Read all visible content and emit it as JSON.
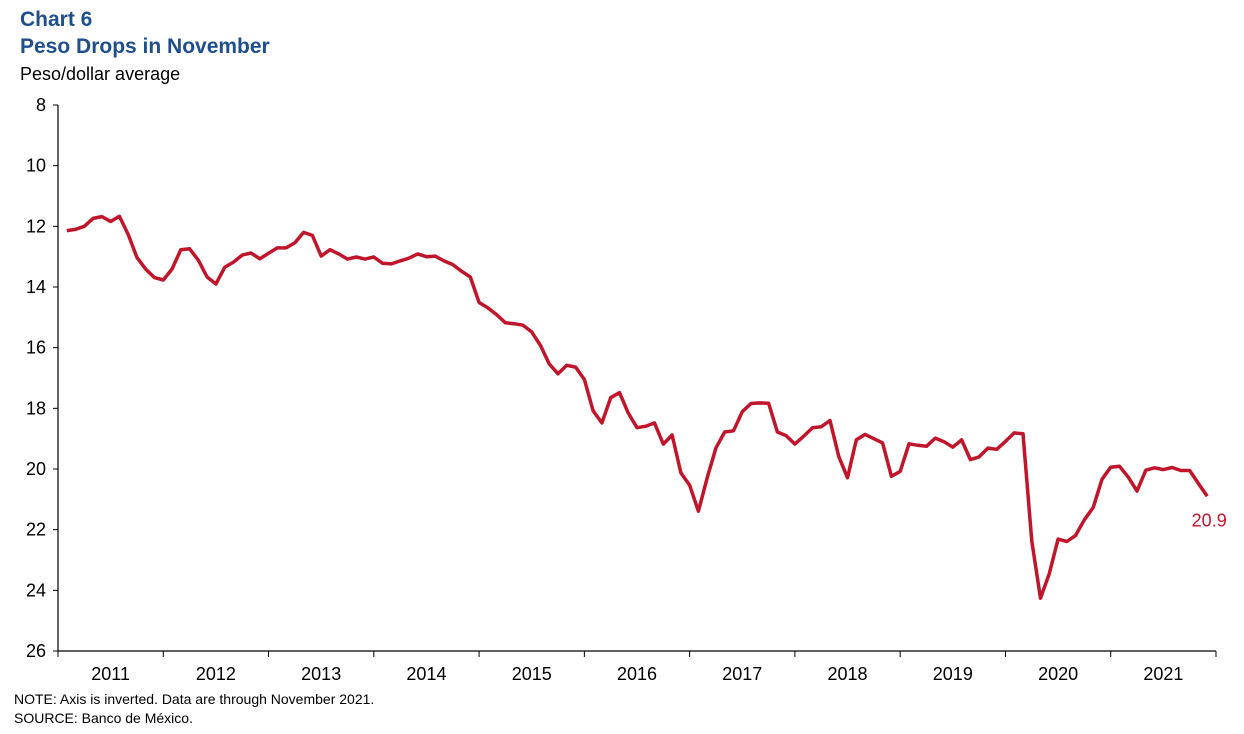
{
  "chart_data": {
    "type": "line",
    "title": "Peso Drops in November",
    "chart_number": "Chart 6",
    "ylabel": "Peso/dollar average",
    "xlabel": "",
    "y_inverted": true,
    "ylim": [
      8,
      26
    ],
    "yticks": [
      "8",
      "10",
      "12",
      "14",
      "16",
      "18",
      "20",
      "22",
      "24",
      "26"
    ],
    "xlim": [
      "2010-12",
      "2021-12"
    ],
    "year_labels": [
      "2011",
      "2012",
      "2013",
      "2014",
      "2015",
      "2016",
      "2017",
      "2018",
      "2019",
      "2020",
      "2021"
    ],
    "grid": false,
    "legend": "none",
    "line_color": "#c0152a",
    "end_label": "20.9",
    "series": [
      {
        "start": "2011-01",
        "frequency": "monthly",
        "values": [
          12.14,
          12.1,
          12.0,
          11.74,
          11.68,
          11.84,
          11.67,
          12.27,
          13.03,
          13.41,
          13.69,
          13.77,
          13.41,
          12.77,
          12.74,
          13.12,
          13.67,
          13.9,
          13.35,
          13.18,
          12.95,
          12.88,
          13.07,
          12.89,
          12.71,
          12.71,
          12.54,
          12.2,
          12.3,
          12.98,
          12.77,
          12.91,
          13.08,
          13.01,
          13.08,
          13.01,
          13.22,
          13.24,
          13.14,
          13.05,
          12.91,
          13.0,
          12.98,
          13.14,
          13.26,
          13.48,
          13.67,
          14.51,
          14.69,
          14.91,
          15.18,
          15.21,
          15.26,
          15.48,
          15.93,
          16.54,
          16.86,
          16.58,
          16.64,
          17.05,
          18.08,
          18.48,
          17.65,
          17.48,
          18.15,
          18.64,
          18.59,
          18.48,
          19.18,
          18.88,
          20.13,
          20.53,
          21.39,
          20.29,
          19.3,
          18.78,
          18.74,
          18.11,
          17.84,
          17.82,
          17.83,
          18.78,
          18.9,
          19.18,
          18.92,
          18.64,
          18.61,
          18.4,
          19.59,
          20.29,
          19.04,
          18.86,
          19.0,
          19.14,
          20.24,
          20.08,
          19.17,
          19.22,
          19.25,
          18.98,
          19.1,
          19.28,
          19.04,
          19.69,
          19.6,
          19.31,
          19.35,
          19.09,
          18.81,
          18.84,
          22.38,
          24.26,
          23.45,
          22.31,
          22.39,
          22.19,
          21.67,
          21.27,
          20.34,
          19.94,
          19.91,
          20.27,
          20.73,
          20.04,
          19.96,
          20.02,
          19.95,
          20.05,
          20.05,
          20.48,
          20.9
        ]
      }
    ]
  },
  "footer": {
    "note": "NOTE:  Axis is inverted. Data are through November 2021.",
    "source": "SOURCE:  Banco de México."
  }
}
